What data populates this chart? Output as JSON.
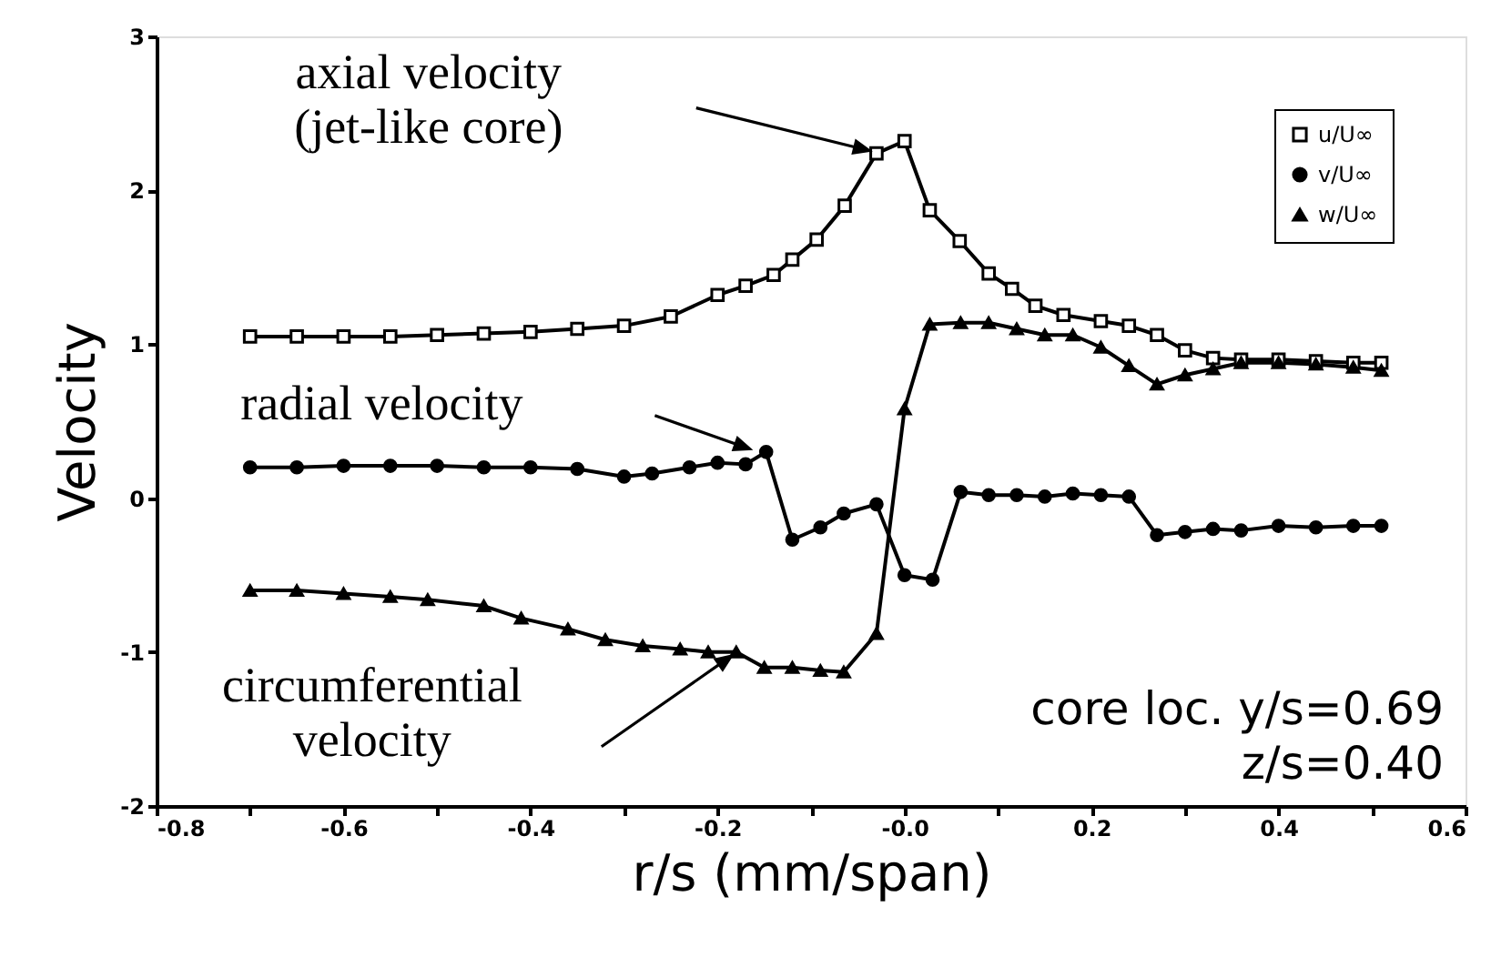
{
  "chart_data": {
    "type": "line",
    "xlabel": "r/s  (mm/span)",
    "ylabel": "Velocity",
    "xlim": [
      -0.8,
      0.6
    ],
    "ylim": [
      -2,
      3
    ],
    "xticks": [
      -0.8,
      {
        "value": -0.7,
        "label": null
      },
      -0.6,
      {
        "value": -0.5,
        "label": null
      },
      -0.4,
      {
        "value": -0.3,
        "label": null
      },
      -0.2,
      {
        "value": -0.1,
        "label": null
      },
      {
        "value": 0,
        "label": "-0.0"
      },
      {
        "value": 0.1,
        "label": null
      },
      0.2,
      {
        "value": 0.3,
        "label": null
      },
      0.4,
      {
        "value": 0.5,
        "label": null
      },
      0.6
    ],
    "yticks": [
      -2,
      -1,
      0,
      1,
      2,
      3
    ],
    "grid": false,
    "legend": "top right",
    "line_style": "solid",
    "series": [
      {
        "name": "u/U∞",
        "color": "#000000",
        "marker": "square",
        "x": [
          -0.7,
          -0.65,
          -0.6,
          -0.55,
          -0.5,
          -0.45,
          -0.4,
          -0.35,
          -0.3,
          -0.25,
          -0.2,
          -0.17,
          -0.14,
          -0.12,
          -0.094,
          -0.064,
          -0.03,
          0.0,
          0.027,
          0.059,
          0.09,
          0.115,
          0.14,
          0.17,
          0.21,
          0.24,
          0.27,
          0.3,
          0.33,
          0.36,
          0.4,
          0.44,
          0.48,
          0.51
        ],
        "values": [
          1.05,
          1.05,
          1.05,
          1.05,
          1.06,
          1.07,
          1.08,
          1.1,
          1.12,
          1.18,
          1.32,
          1.38,
          1.45,
          1.55,
          1.68,
          1.9,
          2.24,
          2.32,
          1.87,
          1.67,
          1.46,
          1.36,
          1.25,
          1.19,
          1.15,
          1.12,
          1.06,
          0.96,
          0.91,
          0.9,
          0.9,
          0.89,
          0.88,
          0.88
        ]
      },
      {
        "name": "v/U∞",
        "color": "#000000",
        "marker": "circle",
        "x": [
          -0.7,
          -0.65,
          -0.6,
          -0.55,
          -0.5,
          -0.45,
          -0.4,
          -0.35,
          -0.3,
          -0.27,
          -0.23,
          -0.2,
          -0.17,
          -0.148,
          -0.12,
          -0.09,
          -0.065,
          -0.03,
          0.0,
          0.03,
          0.06,
          0.09,
          0.12,
          0.15,
          0.18,
          0.21,
          0.24,
          0.27,
          0.3,
          0.33,
          0.36,
          0.4,
          0.44,
          0.48,
          0.51
        ],
        "values": [
          0.2,
          0.2,
          0.21,
          0.21,
          0.21,
          0.2,
          0.2,
          0.19,
          0.14,
          0.16,
          0.2,
          0.23,
          0.22,
          0.3,
          -0.27,
          -0.19,
          -0.1,
          -0.04,
          -0.5,
          -0.53,
          0.04,
          0.02,
          0.02,
          0.01,
          0.03,
          0.02,
          0.01,
          -0.24,
          -0.22,
          -0.2,
          -0.21,
          -0.18,
          -0.19,
          -0.18,
          -0.18
        ]
      },
      {
        "name": "w/U∞",
        "color": "#000000",
        "marker": "triangle",
        "x": [
          -0.7,
          -0.65,
          -0.6,
          -0.55,
          -0.51,
          -0.45,
          -0.41,
          -0.36,
          -0.32,
          -0.28,
          -0.24,
          -0.21,
          -0.18,
          -0.15,
          -0.12,
          -0.09,
          -0.065,
          -0.03,
          0.0,
          0.027,
          0.06,
          0.09,
          0.12,
          0.15,
          0.18,
          0.21,
          0.24,
          0.27,
          0.3,
          0.33,
          0.36,
          0.4,
          0.44,
          0.48,
          0.51
        ],
        "values": [
          -0.6,
          -0.6,
          -0.62,
          -0.64,
          -0.66,
          -0.7,
          -0.78,
          -0.85,
          -0.92,
          -0.96,
          -0.98,
          -1.0,
          -1.0,
          -1.1,
          -1.1,
          -1.12,
          -1.13,
          -0.88,
          0.58,
          1.13,
          1.14,
          1.14,
          1.1,
          1.06,
          1.06,
          0.98,
          0.86,
          0.74,
          0.8,
          0.84,
          0.88,
          0.88,
          0.87,
          0.85,
          0.83
        ]
      }
    ],
    "annotations": [
      "axial velocity\n(jet-like core)",
      "radial velocity",
      "circumferential\nvelocity",
      "core loc. y/s=0.69\nz/s=0.40"
    ]
  }
}
